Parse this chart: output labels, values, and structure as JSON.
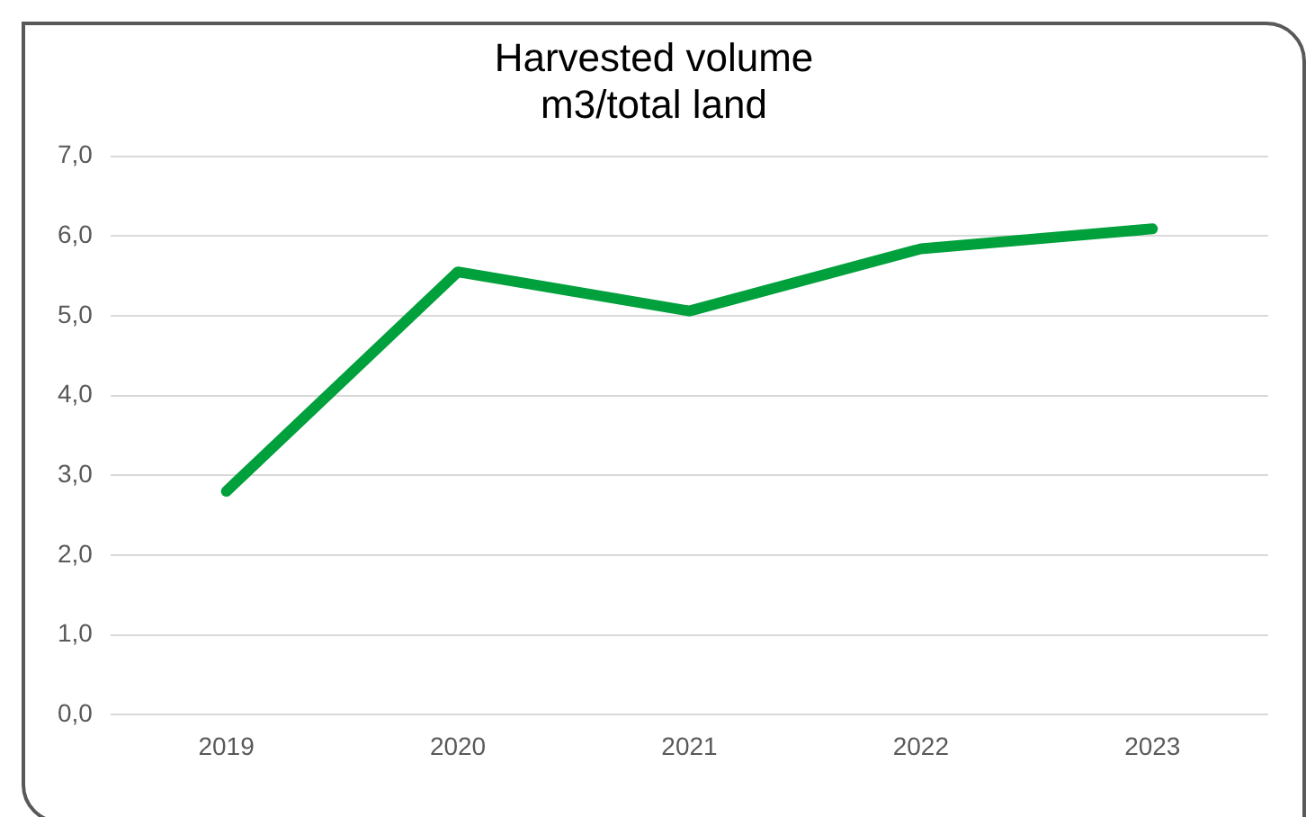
{
  "chart_data": {
    "type": "line",
    "title": "Harvested volume\nm3/total land",
    "categories": [
      "2019",
      "2020",
      "2021",
      "2022",
      "2023"
    ],
    "series": [
      {
        "color": "#00a03c",
        "values": [
          2.8,
          5.55,
          5.06,
          5.84,
          6.09
        ]
      }
    ],
    "ylim": [
      0,
      7
    ],
    "yticks": [
      {
        "value": 0,
        "label": "0,0"
      },
      {
        "value": 1,
        "label": "1,0"
      },
      {
        "value": 2,
        "label": "2,0"
      },
      {
        "value": 3,
        "label": "3,0"
      },
      {
        "value": 4,
        "label": "4,0"
      },
      {
        "value": 5,
        "label": "5,0"
      },
      {
        "value": 6,
        "label": "6,0"
      },
      {
        "value": 7,
        "label": "7,0"
      }
    ],
    "grid": "y",
    "legend": false,
    "marker": "none",
    "line_style": "solid"
  }
}
